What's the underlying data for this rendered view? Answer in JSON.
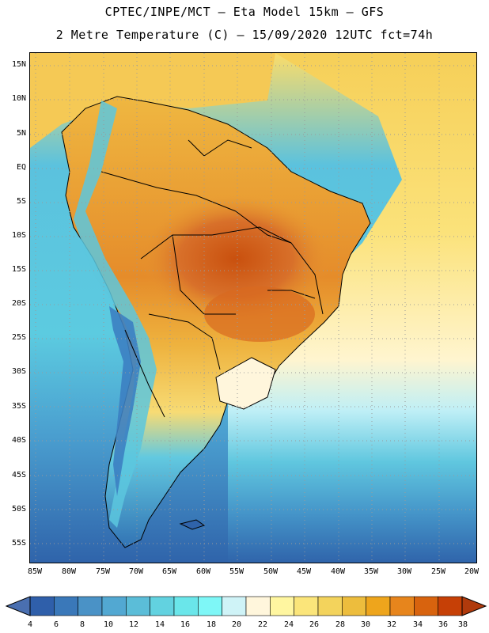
{
  "header": {
    "line1": "CPTEC/INPE/MCT –  Eta Model 15km – GFS",
    "line2": "2 Metre Temperature (C) – 15/09/2020 12UTC fct=74h"
  },
  "axes": {
    "lat_labels": [
      "15N",
      "10N",
      "5N",
      "EQ",
      "5S",
      "10S",
      "15S",
      "20S",
      "25S",
      "30S",
      "35S",
      "40S",
      "45S",
      "50S",
      "55S"
    ],
    "lon_labels": [
      "85W",
      "80W",
      "75W",
      "70W",
      "65W",
      "60W",
      "55W",
      "50W",
      "45W",
      "40W",
      "35W",
      "30W",
      "25W",
      "20W"
    ]
  },
  "colorbar": {
    "ticks": [
      "4",
      "6",
      "8",
      "10",
      "12",
      "14",
      "16",
      "18",
      "20",
      "22",
      "24",
      "26",
      "28",
      "30",
      "32",
      "34",
      "36",
      "38"
    ],
    "low_color": "#4a6fb0",
    "high_color": "#b03a0c",
    "colors": [
      "#2f5faa",
      "#3a78b9",
      "#4a92c6",
      "#52a8d2",
      "#5bbdd8",
      "#62d2e0",
      "#6ae6ea",
      "#7ef7f7",
      "#cff3f7",
      "#fff6dc",
      "#fff6a0",
      "#fbe57a",
      "#f3d35c",
      "#edbd3d",
      "#eea51c",
      "#e7851c",
      "#d8630e",
      "#c64006"
    ]
  },
  "map_palette": {
    "ocean_south": "#2f6aae",
    "ocean_mid": "#4a9ecf",
    "ocean_cyan": "#5ccbe0",
    "atlantic_warm": "#fbe27a",
    "land_warm": "#f0c04d",
    "land_hot": "#d8702a",
    "andes_cold": "#3c8ccc",
    "coast_line": "#000000"
  }
}
